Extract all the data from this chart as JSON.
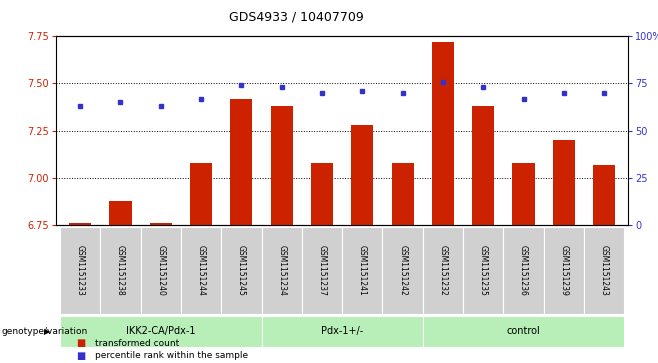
{
  "title": "GDS4933 / 10407709",
  "samples": [
    "GSM1151233",
    "GSM1151238",
    "GSM1151240",
    "GSM1151244",
    "GSM1151245",
    "GSM1151234",
    "GSM1151237",
    "GSM1151241",
    "GSM1151242",
    "GSM1151232",
    "GSM1151235",
    "GSM1151236",
    "GSM1151239",
    "GSM1151243"
  ],
  "bar_values": [
    6.76,
    6.88,
    6.76,
    7.08,
    7.42,
    7.38,
    7.08,
    7.28,
    7.08,
    7.72,
    7.38,
    7.08,
    7.2,
    7.07
  ],
  "dot_values": [
    63,
    65,
    63,
    67,
    74,
    73,
    70,
    71,
    70,
    76,
    73,
    67,
    70,
    70
  ],
  "groups": [
    {
      "label": "IKK2-CA/Pdx-1",
      "start": 0,
      "end": 5
    },
    {
      "label": "Pdx-1+/-",
      "start": 5,
      "end": 9
    },
    {
      "label": "control",
      "start": 9,
      "end": 14
    }
  ],
  "ylim_left": [
    6.75,
    7.75
  ],
  "ylim_right": [
    0,
    100
  ],
  "yticks_left": [
    6.75,
    7.0,
    7.25,
    7.5,
    7.75
  ],
  "yticks_right": [
    0,
    25,
    50,
    75,
    100
  ],
  "bar_color": "#cc2200",
  "dot_color": "#3333cc",
  "group_bg": "#b8eeb8",
  "sample_bg": "#d0d0d0",
  "legend_bar_label": "transformed count",
  "legend_dot_label": "percentile rank within the sample",
  "genotype_label": "genotype/variation"
}
